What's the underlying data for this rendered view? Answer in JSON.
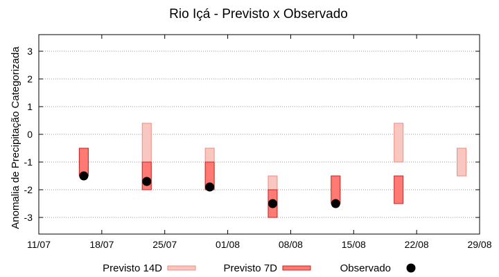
{
  "chart_data": {
    "type": "bar",
    "title": "Rio Içá - Previsto x Observado",
    "xlabel": "",
    "ylabel": "Anomalia de Precipitação Categorizada",
    "xlim": [
      "2024-07-11",
      "2024-08-29"
    ],
    "ylim": [
      -3.6,
      3.6
    ],
    "x_ticks": [
      "11/07",
      "18/07",
      "25/07",
      "01/08",
      "08/08",
      "15/08",
      "22/08",
      "29/08"
    ],
    "y_ticks": [
      -3,
      -2,
      -1,
      0,
      1,
      2,
      3
    ],
    "grid": true,
    "legend_position": "bottom",
    "series": [
      {
        "name": "Previsto 14D",
        "kind": "range-bar",
        "color": "#f9c7c0",
        "edge": "#f08a80",
        "points": [
          {
            "x": "2024-07-16",
            "low": -1.5,
            "high": -0.5
          },
          {
            "x": "2024-07-23",
            "low": -2.0,
            "high": 0.4
          },
          {
            "x": "2024-07-30",
            "low": -2.0,
            "high": -0.5
          },
          {
            "x": "2024-08-06",
            "low": -3.0,
            "high": -1.5
          },
          {
            "x": "2024-08-13",
            "low": -2.5,
            "high": -1.5
          },
          {
            "x": "2024-08-20",
            "low": -1.0,
            "high": 0.4
          },
          {
            "x": "2024-08-27",
            "low": -1.5,
            "high": -0.5
          }
        ]
      },
      {
        "name": "Previsto 7D",
        "kind": "range-bar",
        "color": "#ff7a72",
        "edge": "#c82020",
        "points": [
          {
            "x": "2024-07-16",
            "low": -1.5,
            "high": -0.5
          },
          {
            "x": "2024-07-23",
            "low": -2.0,
            "high": -1.0
          },
          {
            "x": "2024-07-30",
            "low": -2.0,
            "high": -1.0
          },
          {
            "x": "2024-08-06",
            "low": -3.0,
            "high": -2.0
          },
          {
            "x": "2024-08-13",
            "low": -2.5,
            "high": -1.5
          },
          {
            "x": "2024-08-20",
            "low": -2.5,
            "high": -1.5
          }
        ]
      },
      {
        "name": "Observado",
        "kind": "scatter",
        "color": "#000000",
        "points": [
          {
            "x": "2024-07-16",
            "y": -1.5
          },
          {
            "x": "2024-07-23",
            "y": -1.7
          },
          {
            "x": "2024-07-30",
            "y": -1.9
          },
          {
            "x": "2024-08-06",
            "y": -2.5
          },
          {
            "x": "2024-08-13",
            "y": -2.5
          }
        ]
      }
    ]
  }
}
